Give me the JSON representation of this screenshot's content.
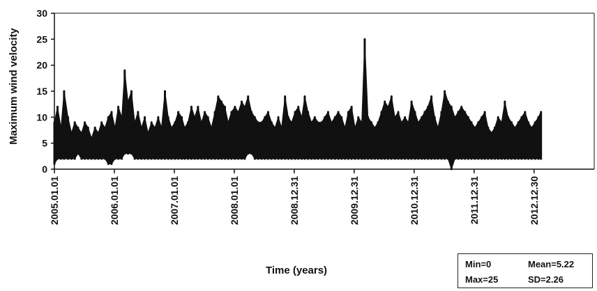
{
  "chart_data": {
    "type": "line",
    "title": "",
    "xlabel": "Time (years)",
    "ylabel": "Maximum wind velocity",
    "ylim": [
      0,
      30
    ],
    "yticks": [
      "0",
      "5",
      "10",
      "15",
      "20",
      "25",
      "30"
    ],
    "xlim": [
      "2005-01-01",
      "2013-12-31"
    ],
    "xticks": [
      {
        "date": "2005-01-01",
        "label": "2005.01.01"
      },
      {
        "date": "2006-01-01",
        "label": "2006.01.01"
      },
      {
        "date": "2007-01-01",
        "label": "2007.01.01"
      },
      {
        "date": "2008-01-01",
        "label": "2008.01.01"
      },
      {
        "date": "2008-12-31",
        "label": "2008.12.31"
      },
      {
        "date": "2009-12-31",
        "label": "2009.12.31"
      },
      {
        "date": "2010-12-31",
        "label": "2010.12.31"
      },
      {
        "date": "2011-12-31",
        "label": "2011.12.31"
      },
      {
        "date": "2012-12-30",
        "label": "2012.12.30"
      }
    ],
    "grid": false,
    "series": [
      {
        "color": "#111111",
        "x": [
          "2005-01-01",
          "2005-01-20",
          "2005-02-10",
          "2005-03-01",
          "2005-03-25",
          "2005-04-15",
          "2005-05-05",
          "2005-05-25",
          "2005-06-15",
          "2005-07-05",
          "2005-07-25",
          "2005-08-15",
          "2005-09-05",
          "2005-09-25",
          "2005-10-15",
          "2005-11-05",
          "2005-11-25",
          "2005-12-15",
          "2006-01-05",
          "2006-01-25",
          "2006-02-15",
          "2006-03-05",
          "2006-03-25",
          "2006-04-15",
          "2006-05-05",
          "2006-05-25",
          "2006-06-15",
          "2006-07-05",
          "2006-07-25",
          "2006-08-15",
          "2006-09-05",
          "2006-09-25",
          "2006-10-15",
          "2006-11-05",
          "2006-11-25",
          "2006-12-15",
          "2007-01-05",
          "2007-01-25",
          "2007-02-15",
          "2007-03-05",
          "2007-03-25",
          "2007-04-15",
          "2007-05-05",
          "2007-05-25",
          "2007-06-15",
          "2007-07-05",
          "2007-07-25",
          "2007-08-15",
          "2007-09-05",
          "2007-09-25",
          "2007-10-15",
          "2007-11-05",
          "2007-11-25",
          "2007-12-15",
          "2008-01-05",
          "2008-01-25",
          "2008-02-15",
          "2008-03-05",
          "2008-03-25",
          "2008-04-15",
          "2008-05-05",
          "2008-05-25",
          "2008-06-15",
          "2008-07-05",
          "2008-07-25",
          "2008-08-15",
          "2008-09-05",
          "2008-09-25",
          "2008-10-15",
          "2008-11-05",
          "2008-11-25",
          "2008-12-15",
          "2009-01-05",
          "2009-01-25",
          "2009-02-15",
          "2009-03-05",
          "2009-03-25",
          "2009-04-15",
          "2009-05-05",
          "2009-05-25",
          "2009-06-15",
          "2009-07-05",
          "2009-07-25",
          "2009-08-15",
          "2009-09-05",
          "2009-09-25",
          "2009-10-15",
          "2009-11-05",
          "2009-11-25",
          "2009-12-15",
          "2010-01-05",
          "2010-01-25",
          "2010-02-15",
          "2010-03-05",
          "2010-03-25",
          "2010-04-15",
          "2010-05-05",
          "2010-05-25",
          "2010-06-15",
          "2010-07-05",
          "2010-07-25",
          "2010-08-15",
          "2010-09-05",
          "2010-09-25",
          "2010-10-15",
          "2010-11-05",
          "2010-11-25",
          "2010-12-15",
          "2011-01-05",
          "2011-01-25",
          "2011-02-15",
          "2011-03-05",
          "2011-03-25",
          "2011-04-15",
          "2011-05-05",
          "2011-05-25",
          "2011-06-15",
          "2011-07-05",
          "2011-07-25",
          "2011-08-15",
          "2011-09-05",
          "2011-09-25",
          "2011-10-15",
          "2011-11-05",
          "2011-11-25",
          "2011-12-15",
          "2012-01-05",
          "2012-01-25",
          "2012-02-15",
          "2012-03-05",
          "2012-03-25",
          "2012-04-15",
          "2012-05-05",
          "2012-05-25",
          "2012-06-15",
          "2012-07-05",
          "2012-07-25",
          "2012-08-15",
          "2012-09-05",
          "2012-09-25",
          "2012-10-15",
          "2012-11-05",
          "2012-11-25",
          "2012-12-15",
          "2013-01-05",
          "2013-01-25",
          "2013-02-10"
        ],
        "y_max": [
          9,
          12,
          8,
          15,
          10,
          7,
          9,
          8,
          7,
          9,
          8,
          6,
          8,
          7,
          9,
          8,
          10,
          11,
          8,
          12,
          10,
          19,
          13,
          15,
          9,
          11,
          8,
          10,
          7,
          9,
          8,
          10,
          8,
          15,
          10,
          8,
          9,
          11,
          10,
          8,
          9,
          12,
          10,
          12,
          9,
          11,
          10,
          8,
          11,
          14,
          13,
          12,
          9,
          11,
          12,
          11,
          13,
          12,
          14,
          11,
          10,
          9,
          9,
          10,
          11,
          9,
          8,
          10,
          8,
          14,
          10,
          9,
          11,
          12,
          10,
          14,
          11,
          9,
          10,
          9,
          9,
          10,
          11,
          9,
          10,
          11,
          10,
          8,
          11,
          12,
          8,
          10,
          9,
          25,
          10,
          9,
          8,
          9,
          11,
          13,
          12,
          14,
          10,
          11,
          9,
          10,
          9,
          13,
          11,
          9,
          10,
          11,
          12,
          14,
          10,
          8,
          11,
          15,
          13,
          12,
          10,
          11,
          12,
          11,
          10,
          9,
          8,
          9,
          10,
          11,
          8,
          7,
          8,
          10,
          9,
          13,
          10,
          9,
          8,
          9,
          10,
          11,
          9,
          8,
          9,
          10,
          11
        ],
        "y_min": [
          1,
          2,
          2,
          2,
          2,
          2,
          2,
          3,
          2,
          2,
          2,
          2,
          2,
          2,
          2,
          2,
          1,
          1,
          2,
          2,
          2,
          3,
          3,
          3,
          2,
          2,
          2,
          2,
          2,
          2,
          2,
          2,
          2,
          2,
          2,
          2,
          2,
          2,
          2,
          2,
          2,
          2,
          2,
          2,
          2,
          2,
          2,
          2,
          2,
          2,
          2,
          2,
          2,
          2,
          2,
          2,
          2,
          2,
          3,
          3,
          2,
          2,
          2,
          2,
          2,
          2,
          2,
          2,
          2,
          2,
          2,
          2,
          2,
          2,
          2,
          2,
          2,
          2,
          2,
          2,
          2,
          2,
          2,
          2,
          2,
          2,
          2,
          2,
          2,
          2,
          2,
          2,
          2,
          2,
          2,
          2,
          2,
          2,
          2,
          2,
          2,
          2,
          2,
          2,
          2,
          2,
          2,
          2,
          2,
          2,
          2,
          2,
          2,
          2,
          2,
          2,
          2,
          2,
          2,
          0,
          2,
          2,
          2,
          2,
          2,
          2,
          2,
          2,
          2,
          2,
          2,
          2,
          2,
          2,
          2,
          2,
          2,
          2,
          2,
          2,
          2,
          2,
          2,
          2,
          2,
          2,
          2
        ]
      }
    ]
  },
  "stats": {
    "min": "Min=0",
    "mean": "Mean=5.22",
    "max": "Max=25",
    "sd": "SD=2.26"
  }
}
